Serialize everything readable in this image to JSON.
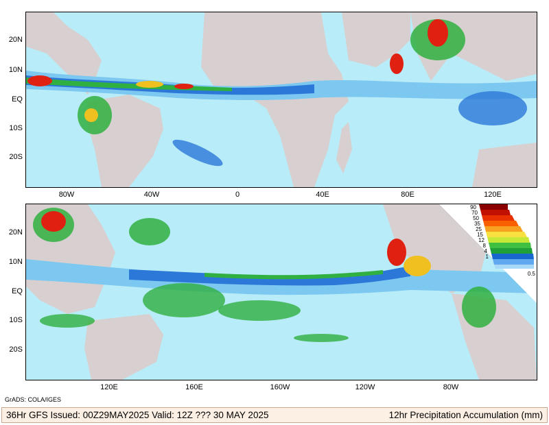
{
  "top_panel": {
    "lat_labels": [
      "20N",
      "10N",
      "EQ",
      "10S",
      "20S"
    ],
    "lon_labels": [
      "80W",
      "40W",
      "0",
      "40E",
      "80E",
      "120E"
    ]
  },
  "bottom_panel": {
    "lat_labels": [
      "20N",
      "10N",
      "EQ",
      "10S",
      "20S"
    ],
    "lon_labels": [
      "120E",
      "160E",
      "160W",
      "120W",
      "80W"
    ]
  },
  "legend": {
    "levels": [
      "90",
      "70",
      "50",
      "35",
      "25",
      "15",
      "12",
      "8",
      "4",
      "1",
      "0.5"
    ],
    "colors": [
      "#8b0000",
      "#c01000",
      "#e83000",
      "#f86000",
      "#f8a020",
      "#f8e040",
      "#c8e838",
      "#40c040",
      "#20a038",
      "#1868d0",
      "#60a8f0",
      "#a8d8f8"
    ]
  },
  "colors": {
    "ocean_light": "#b8ecf8",
    "land": "#d8d0d0",
    "light_rain": "#7cc8f0",
    "moderate_rain": "#2c78d8",
    "heavy_rain": "#30b040",
    "very_heavy": "#f0c020",
    "extreme": "#e02010"
  },
  "credit": "GrADS: COLA/IGES",
  "footer": {
    "left": "36Hr GFS Issued: 00Z29MAY2025 Valid: 12Z ??? 30 MAY 2025",
    "right": "12hr Precipitation Accumulation (mm)"
  }
}
